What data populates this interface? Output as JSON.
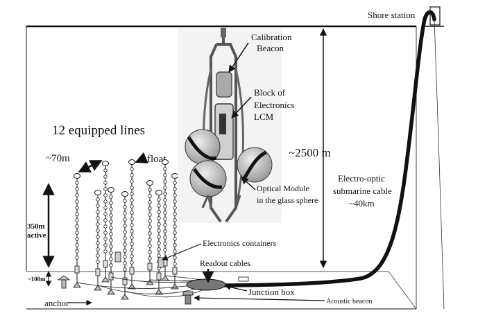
{
  "labels": {
    "shore_station": "Shore station",
    "calibration_beacon": [
      "Calibration",
      "Beacon"
    ],
    "block_of_electronics": [
      "Block of",
      "Electronics",
      "LCM"
    ],
    "equipped_lines": "12 equipped lines",
    "line_spacing": "~70m",
    "float": "float",
    "depth": "~2500 m",
    "electro_optic_cable": [
      "Electro-optic",
      "submarine cable",
      "~40km"
    ],
    "optical_module": [
      "Optical Module",
      "in the glass sphere"
    ],
    "active_height": [
      "350m",
      "active"
    ],
    "electronics_containers": "Electronics containers",
    "readout_cables": "Readout cables",
    "bottom_height": "~100m",
    "junction_box": "Junction box",
    "anchor": "anchor",
    "acoustic_beacon": "Acoustic beacon"
  },
  "colors": {
    "ink": "#111111",
    "sphere_fill": "#c8c8c8",
    "module_frame": "#555555"
  }
}
